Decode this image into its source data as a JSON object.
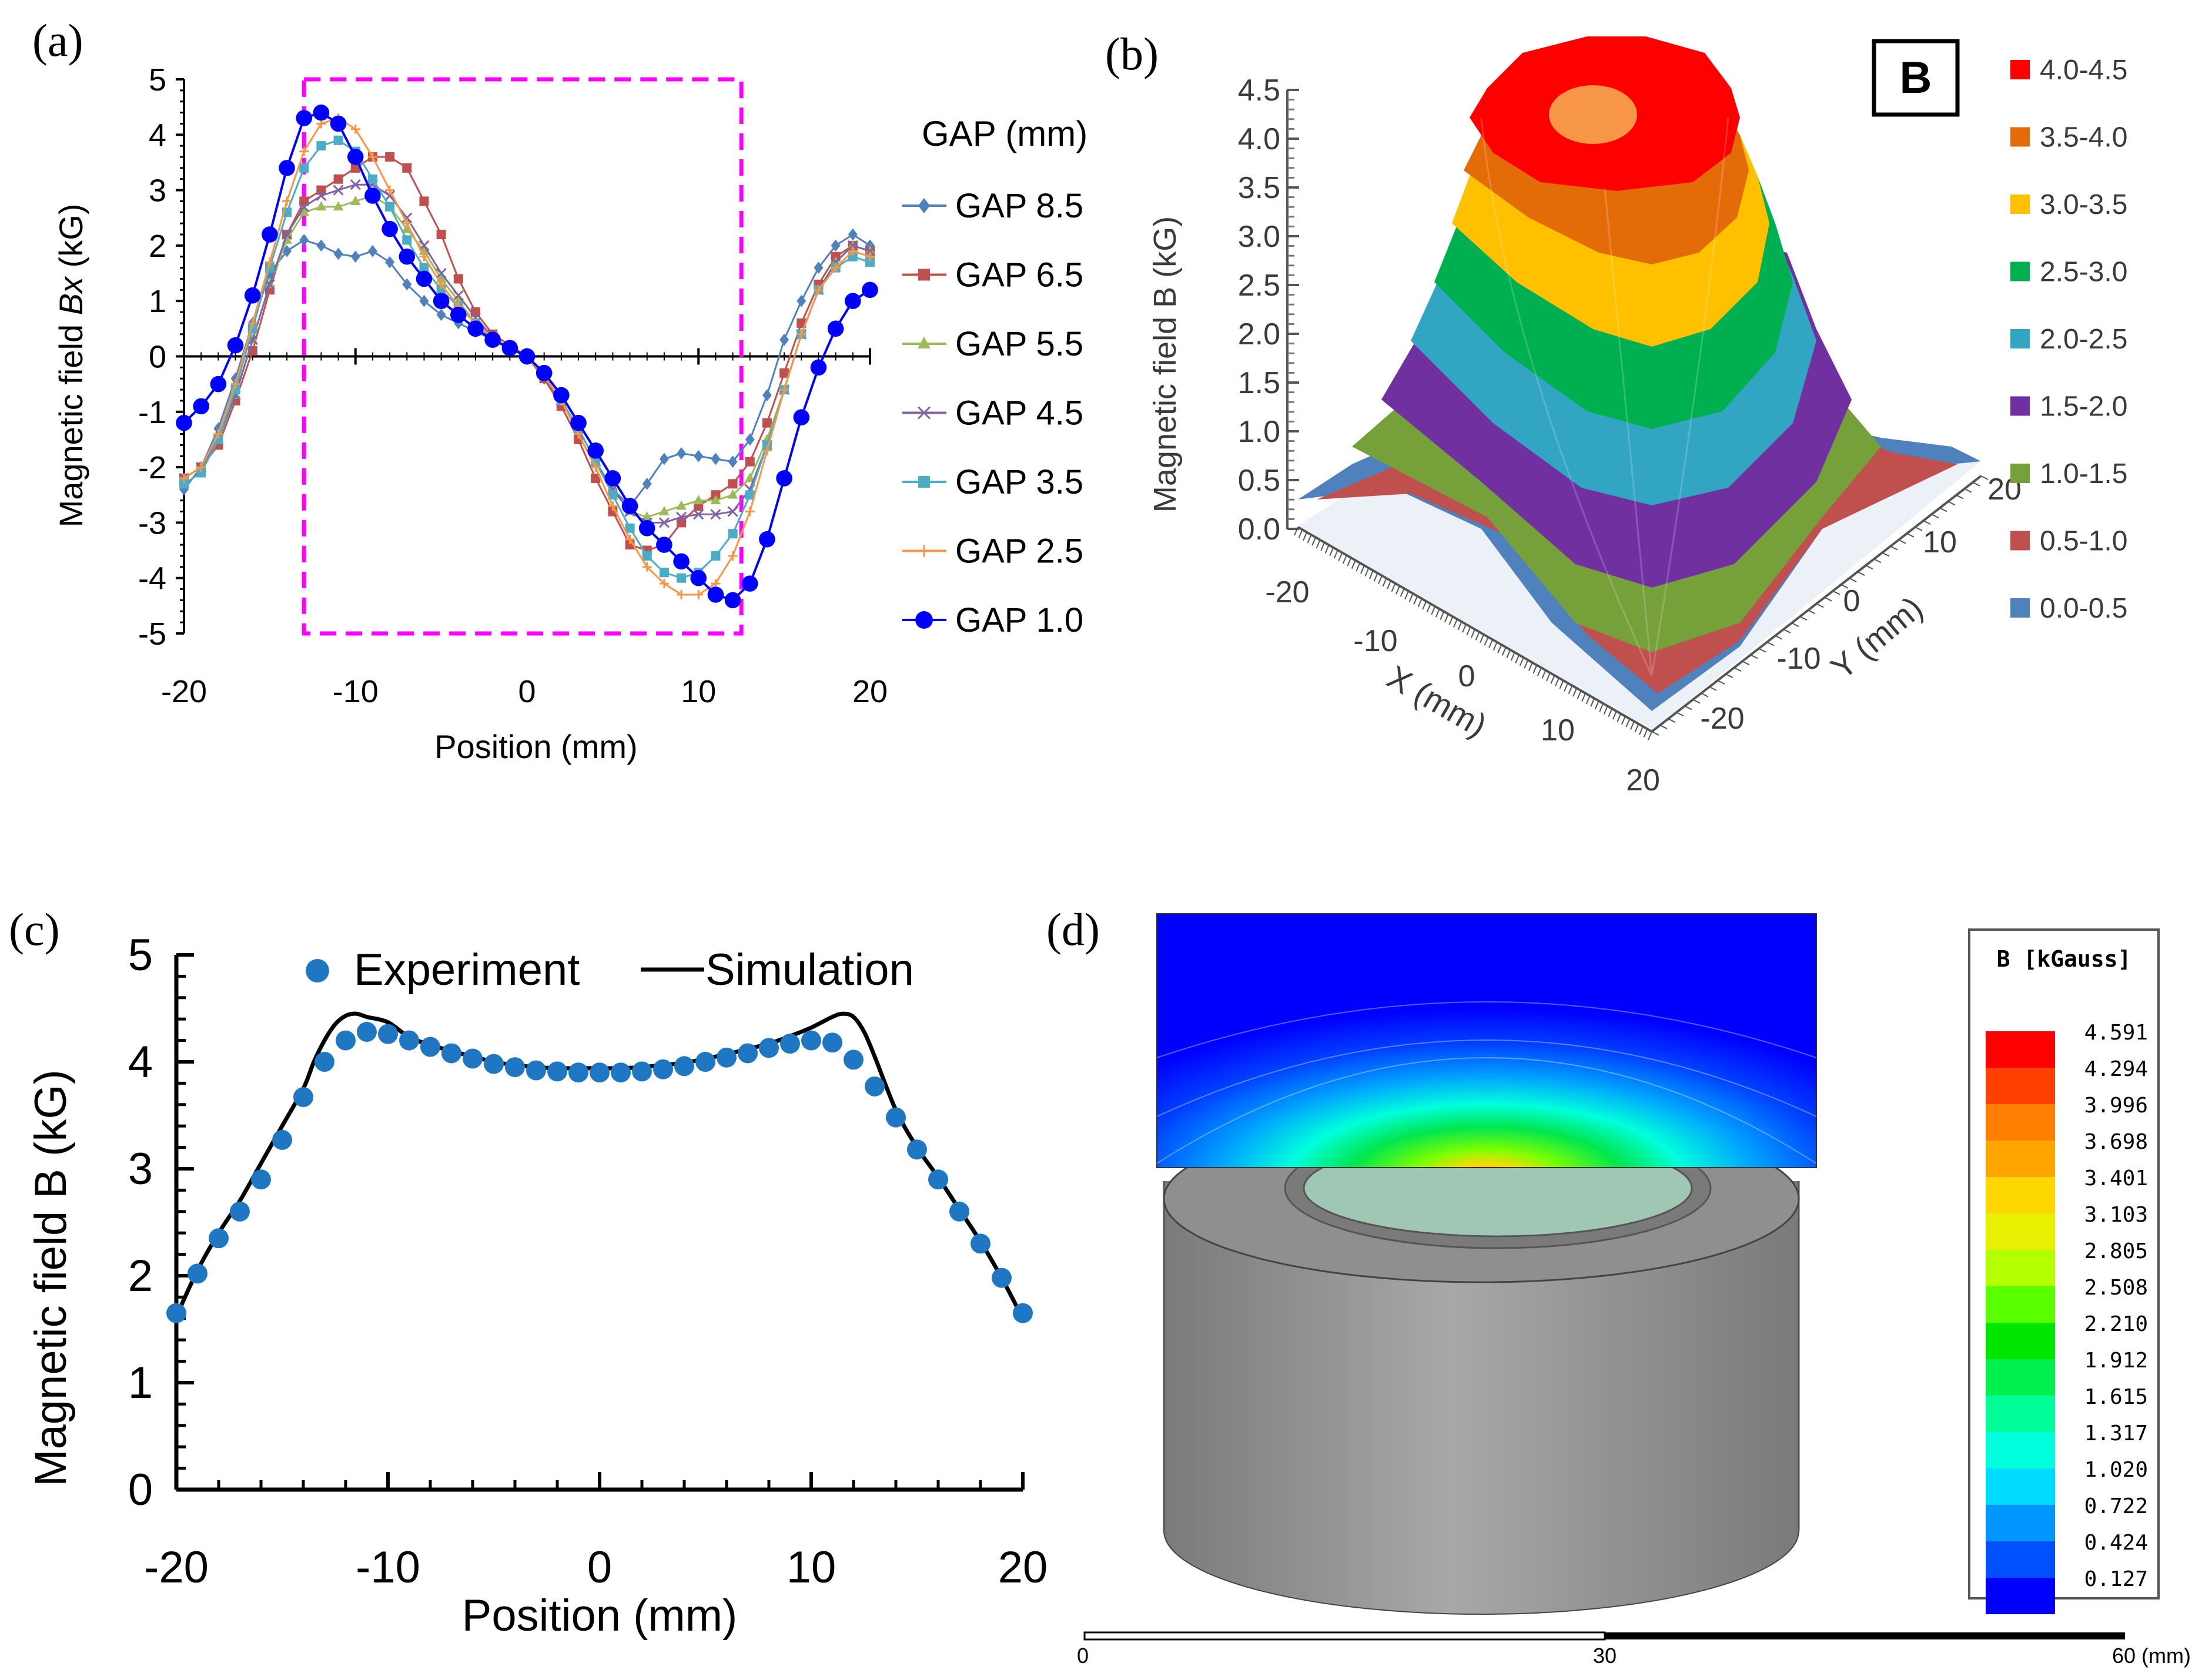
{
  "chart_data": [
    {
      "id": "a",
      "panel_label": "(a)",
      "type": "line",
      "xlabel_prefix": "Magnetic field ",
      "ylabel_italic": "Bx",
      "ylabel_suffix": " (kG)",
      "xlabel": "Position (mm)",
      "xlim": [
        -20,
        20
      ],
      "ylim": [
        -5,
        5
      ],
      "xticks": [
        -20,
        -10,
        0,
        10,
        20
      ],
      "yticks": [
        -5,
        -4,
        -3,
        -2,
        -1,
        0,
        1,
        2,
        3,
        4,
        5
      ],
      "legend_title": "GAP (mm)",
      "highlight_box": {
        "x": [
          -13,
          12.5
        ],
        "y": [
          -5,
          5
        ],
        "color": "#ff00ff"
      },
      "series": [
        {
          "name": "GAP 8.5",
          "color": "#4f81bd",
          "marker": "diamond",
          "x": [
            -20,
            -19,
            -18,
            -17,
            -16,
            -15,
            -14,
            -13,
            -12,
            -11,
            -10,
            -9,
            -8,
            -7,
            -6,
            -5,
            -4,
            -3,
            -2,
            -1,
            0,
            1,
            2,
            3,
            4,
            5,
            6,
            7,
            8,
            9,
            10,
            11,
            12,
            13,
            14,
            15,
            16,
            17,
            18,
            19,
            20
          ],
          "y": [
            -2.4,
            -2.0,
            -1.3,
            -0.4,
            0.6,
            1.5,
            1.9,
            2.1,
            2.0,
            1.85,
            1.8,
            1.9,
            1.7,
            1.3,
            1.0,
            0.75,
            0.6,
            0.45,
            0.3,
            0.15,
            0,
            -0.4,
            -0.8,
            -1.3,
            -1.9,
            -2.4,
            -2.7,
            -2.3,
            -1.85,
            -1.75,
            -1.8,
            -1.85,
            -1.9,
            -1.5,
            -0.7,
            0.3,
            1.0,
            1.6,
            2.0,
            2.2,
            2.0
          ]
        },
        {
          "name": "GAP 6.5",
          "color": "#c0504d",
          "marker": "square",
          "x": [
            -20,
            -19,
            -18,
            -17,
            -16,
            -15,
            -14,
            -13,
            -12,
            -11,
            -10,
            -9,
            -8,
            -7,
            -6,
            -5,
            -4,
            -3,
            -2,
            -1,
            0,
            1,
            2,
            3,
            4,
            5,
            6,
            7,
            8,
            9,
            10,
            11,
            12,
            13,
            14,
            15,
            16,
            17,
            18,
            19,
            20
          ],
          "y": [
            -2.2,
            -2.0,
            -1.6,
            -0.8,
            0.1,
            1.2,
            2.2,
            2.8,
            3.0,
            3.2,
            3.4,
            3.6,
            3.6,
            3.4,
            2.8,
            2.2,
            1.4,
            0.8,
            0.4,
            0.2,
            0,
            -0.4,
            -0.9,
            -1.5,
            -2.2,
            -2.8,
            -3.4,
            -3.5,
            -3.4,
            -3.0,
            -2.7,
            -2.5,
            -2.3,
            -1.9,
            -1.2,
            -0.3,
            0.6,
            1.3,
            1.8,
            2.0,
            1.9
          ]
        },
        {
          "name": "GAP 5.5",
          "color": "#9bbb59",
          "marker": "triangle",
          "x": [
            -20,
            -19,
            -18,
            -17,
            -16,
            -15,
            -14,
            -13,
            -12,
            -11,
            -10,
            -9,
            -8,
            -7,
            -6,
            -5,
            -4,
            -3,
            -2,
            -1,
            0,
            1,
            2,
            3,
            4,
            5,
            6,
            7,
            8,
            9,
            10,
            11,
            12,
            13,
            14,
            15,
            16,
            17,
            18,
            19,
            20
          ],
          "y": [
            -2.2,
            -2.0,
            -1.5,
            -0.7,
            0.3,
            1.3,
            2.1,
            2.6,
            2.7,
            2.7,
            2.8,
            2.9,
            2.7,
            2.3,
            1.9,
            1.4,
            1.0,
            0.6,
            0.3,
            0.15,
            0,
            -0.35,
            -0.8,
            -1.3,
            -1.9,
            -2.4,
            -2.8,
            -2.9,
            -2.8,
            -2.7,
            -2.6,
            -2.6,
            -2.5,
            -2.2,
            -1.5,
            -0.6,
            0.4,
            1.2,
            1.7,
            2.0,
            1.9
          ]
        },
        {
          "name": "GAP 4.5",
          "color": "#8064a2",
          "marker": "x",
          "x": [
            -20,
            -19,
            -18,
            -17,
            -16,
            -15,
            -14,
            -13,
            -12,
            -11,
            -10,
            -9,
            -8,
            -7,
            -6,
            -5,
            -4,
            -3,
            -2,
            -1,
            0,
            1,
            2,
            3,
            4,
            5,
            6,
            7,
            8,
            9,
            10,
            11,
            12,
            13,
            14,
            15,
            16,
            17,
            18,
            19,
            20
          ],
          "y": [
            -2.2,
            -2.0,
            -1.5,
            -0.7,
            0.3,
            1.3,
            2.2,
            2.7,
            2.9,
            3.0,
            3.1,
            3.1,
            2.9,
            2.5,
            2.0,
            1.5,
            1.1,
            0.7,
            0.35,
            0.15,
            0,
            -0.35,
            -0.8,
            -1.3,
            -1.9,
            -2.4,
            -2.8,
            -3.0,
            -3.0,
            -2.9,
            -2.85,
            -2.85,
            -2.8,
            -2.4,
            -1.6,
            -0.6,
            0.4,
            1.2,
            1.7,
            2.0,
            1.9
          ]
        },
        {
          "name": "GAP 3.5",
          "color": "#4bacc6",
          "marker": "square",
          "x": [
            -20,
            -19,
            -18,
            -17,
            -16,
            -15,
            -14,
            -13,
            -12,
            -11,
            -10,
            -9,
            -8,
            -7,
            -6,
            -5,
            -4,
            -3,
            -2,
            -1,
            0,
            1,
            2,
            3,
            4,
            5,
            6,
            7,
            8,
            9,
            10,
            11,
            12,
            13,
            14,
            15,
            16,
            17,
            18,
            19,
            20
          ],
          "y": [
            -2.3,
            -2.1,
            -1.5,
            -0.6,
            0.5,
            1.6,
            2.6,
            3.4,
            3.8,
            3.9,
            3.7,
            3.2,
            2.7,
            2.1,
            1.6,
            1.2,
            0.9,
            0.6,
            0.35,
            0.15,
            0,
            -0.35,
            -0.8,
            -1.3,
            -1.9,
            -2.5,
            -3.1,
            -3.6,
            -3.9,
            -4.0,
            -3.9,
            -3.6,
            -3.2,
            -2.5,
            -1.6,
            -0.6,
            0.4,
            1.2,
            1.6,
            1.8,
            1.7
          ]
        },
        {
          "name": "GAP 2.5",
          "color": "#f79646",
          "marker": "plus",
          "x": [
            -20,
            -19,
            -18,
            -17,
            -16,
            -15,
            -14,
            -13,
            -12,
            -11,
            -10,
            -9,
            -8,
            -7,
            -6,
            -5,
            -4,
            -3,
            -2,
            -1,
            0,
            1,
            2,
            3,
            4,
            5,
            6,
            7,
            8,
            9,
            10,
            11,
            12,
            13,
            14,
            15,
            16,
            17,
            18,
            19,
            20
          ],
          "y": [
            -2.2,
            -2.0,
            -1.4,
            -0.5,
            0.6,
            1.7,
            2.8,
            3.7,
            4.2,
            4.3,
            4.1,
            3.6,
            3.0,
            2.4,
            1.8,
            1.3,
            0.9,
            0.6,
            0.35,
            0.15,
            0,
            -0.35,
            -0.8,
            -1.4,
            -2.0,
            -2.7,
            -3.3,
            -3.8,
            -4.1,
            -4.3,
            -4.3,
            -4.1,
            -3.6,
            -2.8,
            -1.7,
            -0.6,
            0.4,
            1.2,
            1.6,
            1.9,
            1.8
          ]
        },
        {
          "name": "GAP 1.0",
          "color": "#0000ff",
          "marker": "circle",
          "x": [
            -20,
            -19,
            -18,
            -17,
            -16,
            -15,
            -14,
            -13,
            -12,
            -11,
            -10,
            -9,
            -8,
            -7,
            -6,
            -5,
            -4,
            -3,
            -2,
            -1,
            0,
            1,
            2,
            3,
            4,
            5,
            6,
            7,
            8,
            9,
            10,
            11,
            12,
            13,
            14,
            15,
            16,
            17,
            18,
            19,
            20
          ],
          "y": [
            -1.2,
            -0.9,
            -0.5,
            0.2,
            1.1,
            2.2,
            3.4,
            4.3,
            4.4,
            4.2,
            3.6,
            2.9,
            2.3,
            1.8,
            1.4,
            1.0,
            0.75,
            0.5,
            0.3,
            0.15,
            0,
            -0.3,
            -0.7,
            -1.2,
            -1.7,
            -2.2,
            -2.7,
            -3.1,
            -3.4,
            -3.7,
            -4.0,
            -4.3,
            -4.4,
            -4.1,
            -3.3,
            -2.2,
            -1.1,
            -0.2,
            0.5,
            1.0,
            1.2
          ]
        }
      ]
    },
    {
      "id": "b",
      "panel_label": "(b)",
      "type": "surface3d",
      "zlabel": "Magnetic field B (kG)",
      "xlabel": "X (mm)",
      "ylabel": "Y (mm)",
      "zticks": [
        "0.0",
        "0.5",
        "1.0",
        "1.5",
        "2.0",
        "2.5",
        "3.0",
        "3.5",
        "4.0",
        "4.5"
      ],
      "xticks": [
        "-20",
        "-10",
        "0",
        "10",
        "20"
      ],
      "yticks": [
        "-20",
        "-10",
        "0",
        "10",
        "20"
      ],
      "zlim": [
        0,
        4.5
      ],
      "badge": "B",
      "legend": [
        {
          "label": "4.0-4.5",
          "color": "#ff0000"
        },
        {
          "label": "3.5-4.0",
          "color": "#e36c09"
        },
        {
          "label": "3.0-3.5",
          "color": "#ffc000"
        },
        {
          "label": "2.5-3.0",
          "color": "#00b050"
        },
        {
          "label": "2.0-2.5",
          "color": "#31a5c2"
        },
        {
          "label": "1.5-2.0",
          "color": "#7030a0"
        },
        {
          "label": "1.0-1.5",
          "color": "#76a03a"
        },
        {
          "label": "0.5-1.0",
          "color": "#c0504d"
        },
        {
          "label": "0.0-0.5",
          "color": "#4f81bd"
        }
      ]
    },
    {
      "id": "c",
      "panel_label": "(c)",
      "type": "scatter+line",
      "ylabel": "Magnetic field B (kG)",
      "xlabel": "Position (mm)",
      "xlim": [
        -20,
        20
      ],
      "ylim": [
        0,
        5
      ],
      "xticks": [
        -20,
        -10,
        0,
        10,
        20
      ],
      "yticks": [
        0,
        1,
        2,
        3,
        4,
        5
      ],
      "experiment": {
        "name": "Experiment",
        "color": "#1f77c4",
        "x": [
          -20,
          -19,
          -18,
          -17,
          -16,
          -15,
          -14,
          -13,
          -12,
          -11,
          -10,
          -9,
          -8,
          -7,
          -6,
          -5,
          -4,
          -3,
          -2,
          -1,
          0,
          1,
          2,
          3,
          4,
          5,
          6,
          7,
          8,
          9,
          10,
          11,
          12,
          13,
          14,
          15,
          16,
          17,
          18,
          19,
          20
        ],
        "y": [
          1.65,
          2.02,
          2.35,
          2.6,
          2.9,
          3.27,
          3.67,
          4.0,
          4.2,
          4.28,
          4.26,
          4.2,
          4.14,
          4.08,
          4.03,
          3.98,
          3.95,
          3.92,
          3.91,
          3.9,
          3.9,
          3.9,
          3.91,
          3.93,
          3.96,
          4.0,
          4.04,
          4.08,
          4.13,
          4.17,
          4.2,
          4.18,
          4.02,
          3.77,
          3.48,
          3.18,
          2.9,
          2.6,
          2.3,
          1.98,
          1.65
        ]
      },
      "simulation": {
        "name": "Simulation",
        "color": "#000000",
        "x": [
          -20,
          -19,
          -18,
          -17,
          -16,
          -15,
          -14,
          -13.5,
          -13,
          -12.5,
          -12,
          -11.5,
          -11,
          -10,
          -9,
          -8,
          -7,
          -6,
          -5,
          -4,
          -3,
          -2,
          -1,
          0,
          1,
          2,
          3,
          4,
          5,
          6,
          7,
          8,
          9,
          10,
          11,
          11.5,
          12,
          12.5,
          13,
          14,
          15,
          16,
          17,
          18,
          19,
          20
        ],
        "y": [
          1.62,
          2.05,
          2.4,
          2.7,
          3.05,
          3.4,
          3.75,
          4.0,
          4.2,
          4.35,
          4.43,
          4.45,
          4.42,
          4.37,
          4.23,
          4.16,
          4.1,
          4.05,
          4.0,
          3.97,
          3.95,
          3.94,
          3.94,
          3.94,
          3.94,
          3.95,
          3.97,
          3.99,
          4.03,
          4.07,
          4.12,
          4.17,
          4.24,
          4.32,
          4.42,
          4.45,
          4.42,
          4.28,
          4.05,
          3.55,
          3.2,
          2.92,
          2.62,
          2.32,
          1.98,
          1.6
        ]
      }
    },
    {
      "id": "d",
      "panel_label": "(d)",
      "type": "heatmap",
      "colorbar_title": "B [kGauss]",
      "colorbar": [
        {
          "label": "4.591",
          "color": "#ff0000"
        },
        {
          "label": "4.294",
          "color": "#ff4000"
        },
        {
          "label": "3.996",
          "color": "#ff7f00"
        },
        {
          "label": "3.698",
          "color": "#ffa500"
        },
        {
          "label": "3.401",
          "color": "#ffd700"
        },
        {
          "label": "3.103",
          "color": "#e6f000"
        },
        {
          "label": "2.805",
          "color": "#b4ff00"
        },
        {
          "label": "2.508",
          "color": "#5aff00"
        },
        {
          "label": "2.210",
          "color": "#00e600"
        },
        {
          "label": "1.912",
          "color": "#00f050"
        },
        {
          "label": "1.615",
          "color": "#00ff9b"
        },
        {
          "label": "1.317",
          "color": "#00ffdc"
        },
        {
          "label": "1.020",
          "color": "#00dcff"
        },
        {
          "label": "0.722",
          "color": "#0096ff"
        },
        {
          "label": "0.424",
          "color": "#0050ff"
        },
        {
          "label": "0.127",
          "color": "#0000ff"
        }
      ],
      "scalebar": {
        "labels": [
          "0",
          "30",
          "60 (mm)"
        ]
      }
    }
  ]
}
